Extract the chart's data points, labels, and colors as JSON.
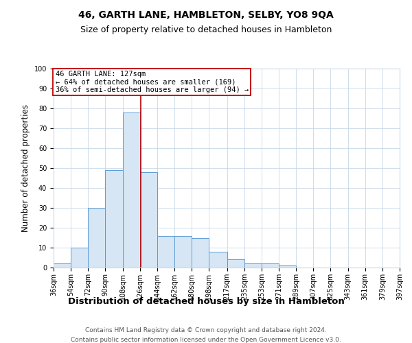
{
  "title": "46, GARTH LANE, HAMBLETON, SELBY, YO8 9QA",
  "subtitle": "Size of property relative to detached houses in Hambleton",
  "xlabel": "Distribution of detached houses by size in Hambleton",
  "ylabel": "Number of detached properties",
  "bin_edges": [
    36,
    54,
    72,
    90,
    108,
    126,
    144,
    162,
    180,
    198,
    217,
    235,
    253,
    271,
    289,
    307,
    325,
    343,
    361,
    379,
    397
  ],
  "bar_heights": [
    2,
    10,
    30,
    49,
    78,
    48,
    16,
    16,
    15,
    8,
    4,
    2,
    2,
    1,
    0,
    0,
    0,
    0,
    0,
    0
  ],
  "bar_color": "#d6e6f4",
  "bar_edge_color": "#5b9bd5",
  "vline_x": 127,
  "vline_color": "#c00000",
  "ylim": [
    0,
    100
  ],
  "annotation_line1": "46 GARTH LANE: 127sqm",
  "annotation_line2": "← 64% of detached houses are smaller (169)",
  "annotation_line3": "36% of semi-detached houses are larger (94) →",
  "annotation_box_color": "#c00000",
  "footer_line1": "Contains HM Land Registry data © Crown copyright and database right 2024.",
  "footer_line2": "Contains public sector information licensed under the Open Government Licence v3.0.",
  "bg_color": "#ffffff",
  "grid_color": "#c8d8e8",
  "title_fontsize": 10,
  "subtitle_fontsize": 9,
  "xlabel_fontsize": 9.5,
  "ylabel_fontsize": 8.5,
  "tick_fontsize": 7,
  "annotation_fontsize": 7.5,
  "footer_fontsize": 6.5
}
